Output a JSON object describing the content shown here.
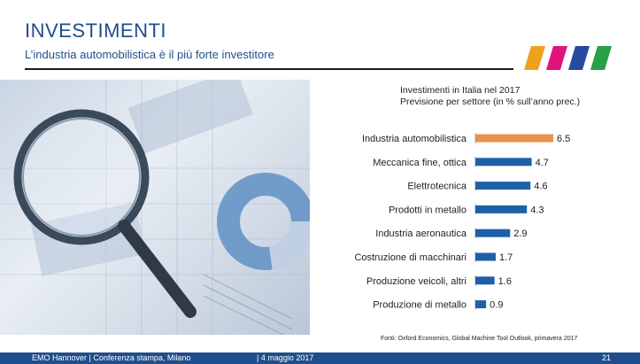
{
  "slide": {
    "title": "INVESTIMENTI",
    "subtitle": "L’industria automobilistica è il più forte investitore"
  },
  "chart_heading": {
    "line1": "Investimenti in Italia nel 2017",
    "line2": "Previsione per settore (in % sull’anno prec.)"
  },
  "chart_data": {
    "type": "bar",
    "orientation": "horizontal",
    "categories": [
      "Industria automobilistica",
      "Meccanica fine, ottica",
      "Elettrotecnica",
      "Prodotti in metallo",
      "Industria aeronautica",
      "Costruzione di macchinari",
      "Produzione veicoli, altri",
      "Produzione di metallo"
    ],
    "values": [
      6.5,
      4.7,
      4.6,
      4.3,
      2.9,
      1.7,
      1.6,
      0.9
    ],
    "value_labels": [
      "6.5",
      "4.7",
      "4.6",
      "4.3",
      "2.9",
      "1.7",
      "1.6",
      "0.9"
    ],
    "bar_colors": [
      "#e8914a",
      "#1f5fa8",
      "#1f5fa8",
      "#1f5fa8",
      "#1f5fa8",
      "#1f5fa8",
      "#1f5fa8",
      "#1f5fa8"
    ],
    "xlim": [
      0,
      6.5
    ],
    "grid": false,
    "legend": "none"
  },
  "source": "Fonti: Oxford Economics, Global Machine Tool Outlook, primavera 2017",
  "footer": {
    "event": "EMO Hannover | Conferenza stampa, Milano",
    "date": "| 4 maggio 2017",
    "page": "21"
  },
  "colors": {
    "brand_blue": "#1f4e8c",
    "highlight_orange": "#e8914a",
    "bar_blue": "#1f5fa8",
    "logo_stripes": [
      "#f0a020",
      "#e0147a",
      "#2a4aa0",
      "#28a048"
    ]
  }
}
